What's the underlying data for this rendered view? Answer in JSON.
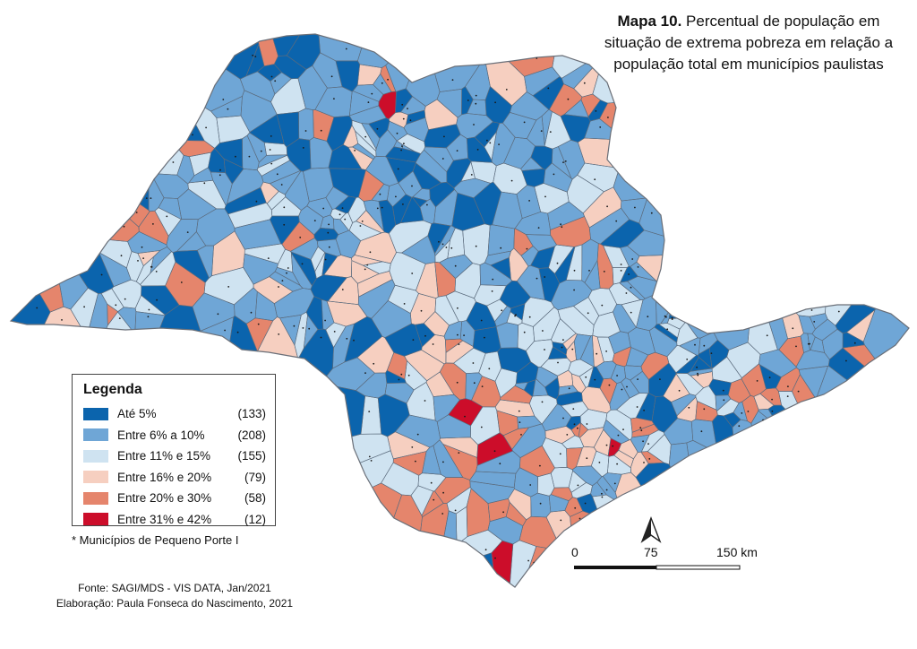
{
  "title": {
    "bold": "Mapa 10.",
    "line1": "Percentual de população em",
    "line2": "situação de extrema pobreza em relação a",
    "line3": "população total em municípios paulistas"
  },
  "legend": {
    "title": "Legenda",
    "items": [
      {
        "label": "Até 5%",
        "count": "(133)",
        "color": "#0b64ad"
      },
      {
        "label": "Entre 6% a 10%",
        "count": "(208)",
        "color": "#6fa6d6"
      },
      {
        "label": "Entre 11% e 15%",
        "count": "(155)",
        "color": "#cfe3f1"
      },
      {
        "label": "Entre 16% e 20%",
        "count": "(79)",
        "color": "#f6cfc0"
      },
      {
        "label": "Entre 20% e 30%",
        "count": "(58)",
        "color": "#e5856c"
      },
      {
        "label": "Entre 31% e 42%",
        "count": "(12)",
        "color": "#cc0d2a"
      }
    ]
  },
  "note": "* Municípios de Pequeno Porte I",
  "source": "Fonte: SAGI/MDS - VIS DATA, Jan/2021",
  "author": "Elaboração: Paula Fonseca do Nascimento, 2021",
  "scale": {
    "labels": [
      "0",
      "75",
      "150 km"
    ]
  },
  "north_arrow": {
    "icon": "north-arrow-icon"
  }
}
